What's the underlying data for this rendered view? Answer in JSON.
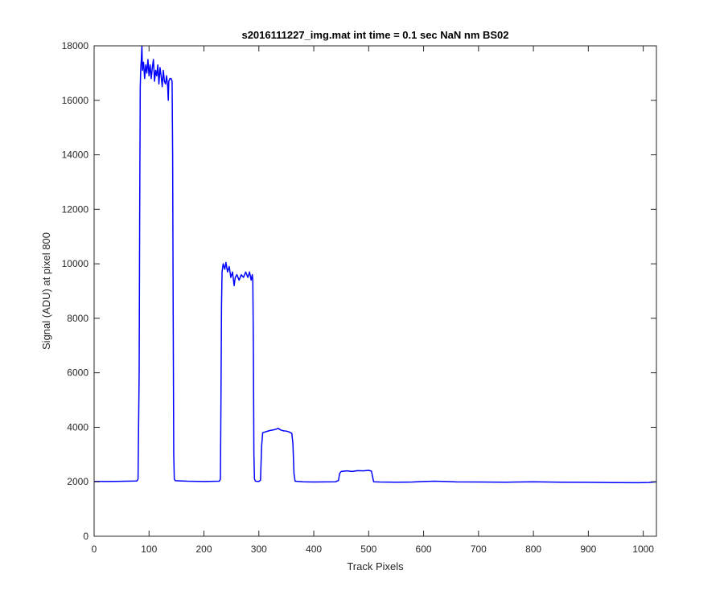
{
  "chart_data": {
    "type": "line",
    "title": "s2016111227_img.mat int time = 0.1 sec  NaN nm BS02",
    "xlabel": "Track Pixels",
    "ylabel": "Signal (ADU) at pixel 800",
    "xlim": [
      0,
      1024
    ],
    "ylim": [
      0,
      18000
    ],
    "xticks": [
      0,
      100,
      200,
      300,
      400,
      500,
      600,
      700,
      800,
      900,
      1000
    ],
    "yticks": [
      0,
      2000,
      4000,
      6000,
      8000,
      10000,
      12000,
      14000,
      16000,
      18000
    ],
    "grid": false,
    "line_color": "#0000ff",
    "series": [
      {
        "points": [
          [
            0,
            2010
          ],
          [
            40,
            2015
          ],
          [
            78,
            2030
          ],
          [
            80,
            2100
          ],
          [
            82,
            6000
          ],
          [
            83,
            12000
          ],
          [
            84,
            16500
          ],
          [
            85,
            17200
          ],
          [
            86,
            17500
          ],
          [
            87,
            18000
          ],
          [
            88,
            17100
          ],
          [
            90,
            17400
          ],
          [
            92,
            16800
          ],
          [
            94,
            17300
          ],
          [
            96,
            17000
          ],
          [
            98,
            17500
          ],
          [
            100,
            16900
          ],
          [
            102,
            17300
          ],
          [
            104,
            16800
          ],
          [
            106,
            17200
          ],
          [
            108,
            17500
          ],
          [
            110,
            16700
          ],
          [
            112,
            17100
          ],
          [
            114,
            16900
          ],
          [
            116,
            17300
          ],
          [
            118,
            16600
          ],
          [
            120,
            17200
          ],
          [
            122,
            16900
          ],
          [
            124,
            16500
          ],
          [
            126,
            17100
          ],
          [
            128,
            16700
          ],
          [
            130,
            16600
          ],
          [
            132,
            16900
          ],
          [
            134,
            16500
          ],
          [
            135,
            16000
          ],
          [
            136,
            16700
          ],
          [
            138,
            16800
          ],
          [
            140,
            16800
          ],
          [
            142,
            16700
          ],
          [
            143,
            14000
          ],
          [
            144,
            8000
          ],
          [
            145,
            3000
          ],
          [
            146,
            2100
          ],
          [
            148,
            2040
          ],
          [
            170,
            2020
          ],
          [
            200,
            2010
          ],
          [
            228,
            2020
          ],
          [
            230,
            2100
          ],
          [
            231,
            5000
          ],
          [
            232,
            8500
          ],
          [
            233,
            9700
          ],
          [
            235,
            10000
          ],
          [
            238,
            9800
          ],
          [
            240,
            10050
          ],
          [
            243,
            9700
          ],
          [
            246,
            9900
          ],
          [
            249,
            9500
          ],
          [
            252,
            9700
          ],
          [
            255,
            9200
          ],
          [
            257,
            9500
          ],
          [
            260,
            9600
          ],
          [
            264,
            9400
          ],
          [
            268,
            9600
          ],
          [
            272,
            9500
          ],
          [
            276,
            9700
          ],
          [
            280,
            9500
          ],
          [
            283,
            9700
          ],
          [
            286,
            9400
          ],
          [
            288,
            9600
          ],
          [
            289,
            9400
          ],
          [
            290,
            7000
          ],
          [
            291,
            3000
          ],
          [
            292,
            2100
          ],
          [
            294,
            2020
          ],
          [
            300,
            2010
          ],
          [
            303,
            2060
          ],
          [
            305,
            3300
          ],
          [
            307,
            3800
          ],
          [
            310,
            3820
          ],
          [
            315,
            3850
          ],
          [
            320,
            3880
          ],
          [
            325,
            3900
          ],
          [
            330,
            3920
          ],
          [
            335,
            3960
          ],
          [
            340,
            3900
          ],
          [
            345,
            3870
          ],
          [
            350,
            3860
          ],
          [
            355,
            3830
          ],
          [
            360,
            3780
          ],
          [
            362,
            3400
          ],
          [
            364,
            2300
          ],
          [
            366,
            2020
          ],
          [
            380,
            2000
          ],
          [
            400,
            1990
          ],
          [
            420,
            1995
          ],
          [
            440,
            2000
          ],
          [
            445,
            2050
          ],
          [
            447,
            2300
          ],
          [
            450,
            2380
          ],
          [
            460,
            2400
          ],
          [
            470,
            2380
          ],
          [
            480,
            2410
          ],
          [
            490,
            2400
          ],
          [
            500,
            2420
          ],
          [
            505,
            2390
          ],
          [
            507,
            2200
          ],
          [
            509,
            2000
          ],
          [
            520,
            1990
          ],
          [
            550,
            1985
          ],
          [
            580,
            1990
          ],
          [
            600,
            2010
          ],
          [
            620,
            2020
          ],
          [
            640,
            2010
          ],
          [
            660,
            1995
          ],
          [
            700,
            1990
          ],
          [
            750,
            1985
          ],
          [
            800,
            2000
          ],
          [
            850,
            1985
          ],
          [
            900,
            1980
          ],
          [
            950,
            1970
          ],
          [
            990,
            1965
          ],
          [
            1010,
            1975
          ],
          [
            1024,
            2000
          ]
        ]
      }
    ]
  }
}
